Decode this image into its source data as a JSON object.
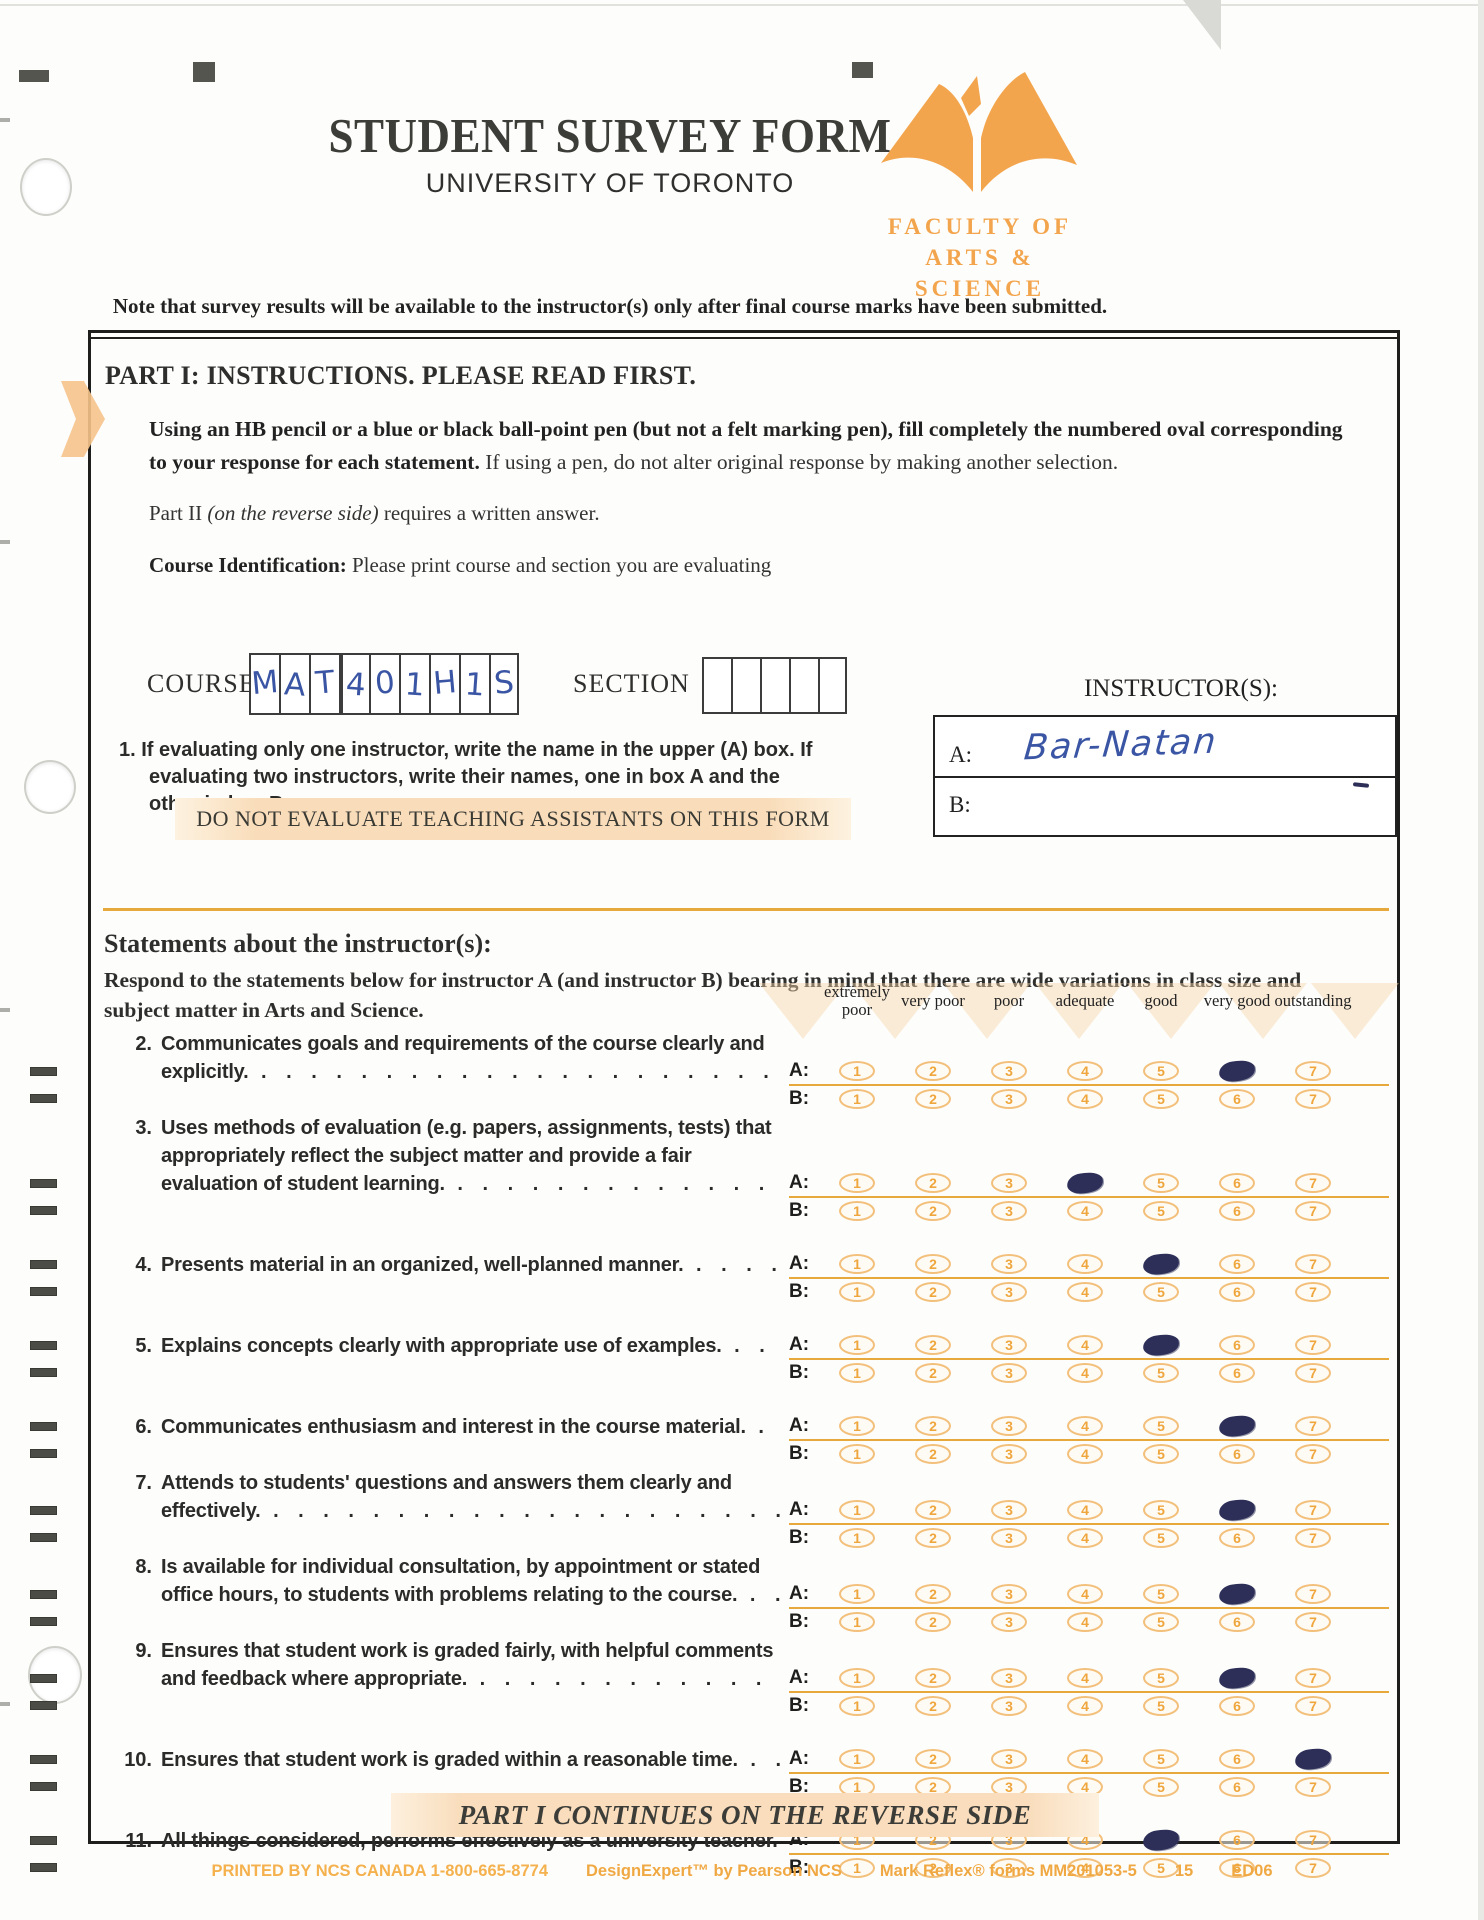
{
  "header": {
    "title": "STUDENT SURVEY FORM",
    "subtitle": "UNIVERSITY OF TORONTO",
    "faculty_line1": "FACULTY OF",
    "faculty_line2": "ARTS & SCIENCE",
    "note": "Note that survey results will be available to the instructor(s) only after final course marks have been submitted."
  },
  "part1": {
    "heading": "PART I:  INSTRUCTIONS. PLEASE READ FIRST.",
    "instruction_bold": "Using an HB pencil or a blue or black ball-point pen (but not a felt marking pen), fill completely the numbered oval corresponding to your response for each statement.",
    "instruction_rest": " If using a pen, do not alter original response by making another selection.",
    "part2_pre": "Part II ",
    "part2_italic": "(on the reverse side)",
    "part2_post": " requires a written answer.",
    "course_id_label": "Course Identification:",
    "course_id_text": " Please print course and section you are evaluating"
  },
  "course": {
    "label": "COURSE",
    "value_cells": [
      "M",
      "A",
      "T",
      "4",
      "0",
      "1",
      "H",
      "1",
      "S"
    ],
    "section_label": "SECTION",
    "section_cells": [
      "",
      "",
      "",
      "",
      ""
    ]
  },
  "instructors": {
    "heading": "INSTRUCTOR(S):",
    "a_label": "A:",
    "a_value": "Bar-Natan",
    "b_label": "B:",
    "b_value": ""
  },
  "note1": {
    "number": "1.",
    "text": "If evaluating only one instructor, write the name in the upper (A) box. If evaluating two instructors, write their names, one in box A and the other in box B."
  },
  "warning": "DO NOT EVALUATE TEACHING ASSISTANTS ON THIS FORM",
  "statements_section": {
    "heading": "Statements about the instructor(s):",
    "intro": "Respond to the statements below for instructor A (and instructor B) bearing in mind that there are wide variations in class size and subject matter in Arts and Science.",
    "scale_labels": [
      "extremely poor",
      "very poor",
      "poor",
      "adequate",
      "good",
      "very good",
      "outstanding"
    ],
    "scale_values": [
      "1",
      "2",
      "3",
      "4",
      "5",
      "6",
      "7"
    ],
    "row_labels": {
      "a": "A:",
      "b": "B:"
    },
    "statements": [
      {
        "number": "2.",
        "text": "Communicates goals and requirements of the course clearly and explicitly.",
        "a_selected": 6,
        "b_selected": null
      },
      {
        "number": "3.",
        "text": "Uses methods of evaluation (e.g. papers, assignments, tests) that appropriately reflect the subject matter and provide a fair evaluation of student learning.",
        "a_selected": 4,
        "b_selected": null
      },
      {
        "number": "4.",
        "text": "Presents material in an organized, well-planned manner.",
        "a_selected": 5,
        "b_selected": null
      },
      {
        "number": "5.",
        "text": "Explains concepts clearly with appropriate use of examples.",
        "a_selected": 5,
        "b_selected": null
      },
      {
        "number": "6.",
        "text": "Communicates enthusiasm and interest in the course material.",
        "a_selected": 6,
        "b_selected": null
      },
      {
        "number": "7.",
        "text": "Attends to students' questions and answers them clearly and effectively.",
        "a_selected": 6,
        "b_selected": null
      },
      {
        "number": "8.",
        "text": "Is available for individual consultation, by appointment or stated office hours, to students with problems relating to the course.",
        "a_selected": 6,
        "b_selected": null
      },
      {
        "number": "9.",
        "text": "Ensures that student work is graded fairly, with helpful comments and feedback where appropriate.",
        "a_selected": 6,
        "b_selected": null
      },
      {
        "number": "10.",
        "text": "Ensures that student work is graded within a reasonable time.",
        "a_selected": 7,
        "b_selected": null
      },
      {
        "number": "11.",
        "text": "All things considered, performs effectively as a university teacher.",
        "a_selected": 5,
        "b_selected": null
      }
    ]
  },
  "footer": {
    "continues": "PART I CONTINUES ON THE REVERSE SIDE",
    "printed_by": "PRINTED BY NCS CANADA 1-800-665-8774",
    "design_expert": "DesignExpert™ by Pearson NCS",
    "mark_reflex": "Mark Reflex® forms MM201053-5",
    "sheet_num": "15",
    "edition": "ED06"
  },
  "colors": {
    "accent_orange": "#e8a93c",
    "logo_orange": "#f3a54e",
    "ink_navy": "#2d2f58",
    "handwriting_blue": "#3a55a4"
  }
}
